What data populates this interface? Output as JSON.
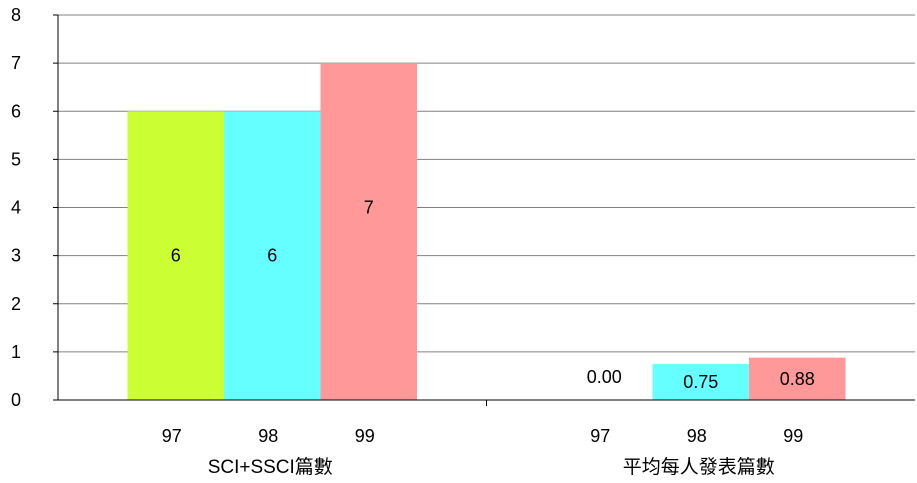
{
  "chart_data": {
    "type": "bar",
    "title": "",
    "xlabel": "",
    "ylabel": "",
    "ylim": [
      0,
      8
    ],
    "yticks": [
      0,
      1,
      2,
      3,
      4,
      5,
      6,
      7,
      8
    ],
    "grid": true,
    "legend": "none",
    "groups": [
      {
        "label": "SCI+SSCI篇數",
        "bars": [
          {
            "category": "97",
            "value": 6,
            "data_label": "6",
            "color": "#ccff33"
          },
          {
            "category": "98",
            "value": 6,
            "data_label": "6",
            "color": "#66ffff"
          },
          {
            "category": "99",
            "value": 7,
            "data_label": "7",
            "color": "#ff9999"
          }
        ]
      },
      {
        "label": "平均每人發表篇數",
        "bars": [
          {
            "category": "97",
            "value": 0.0,
            "data_label": "0.00",
            "color": "#ccff33"
          },
          {
            "category": "98",
            "value": 0.75,
            "data_label": "0.75",
            "color": "#66ffff"
          },
          {
            "category": "99",
            "value": 0.88,
            "data_label": "0.88",
            "color": "#ff9999"
          }
        ]
      }
    ]
  }
}
